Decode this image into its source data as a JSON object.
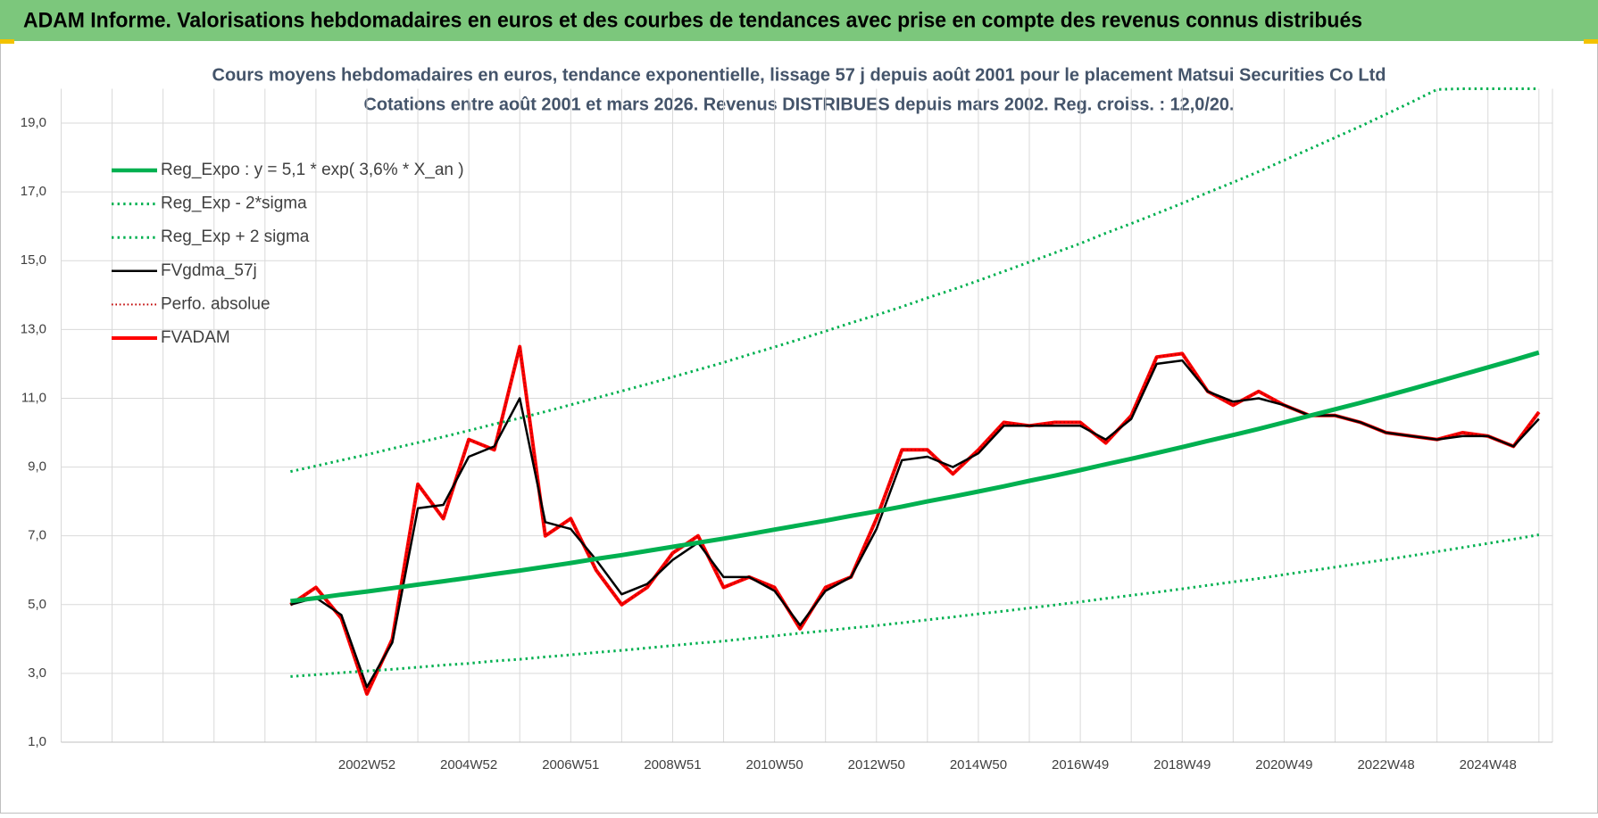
{
  "header": {
    "title": "ADAM Informe. Valorisations hebdomadaires en euros et des courbes de tendances avec prise en compte des revenus connus distribués"
  },
  "chart_data": {
    "type": "line",
    "title": "Cours moyens hebdomadaires en euros, tendance exponentielle, lissage 57 j depuis août 2001 pour le placement Matsui Securities Co Ltd",
    "subtitle": "Cotations entre août 2001 et mars 2026.  Revenus DISTRIBUES depuis mars 2002. Reg. croiss. : 12,0/20.",
    "categories": [
      null,
      null,
      null,
      null,
      null,
      null,
      null,
      null,
      null,
      null,
      null,
      null,
      "2002W52",
      null,
      null,
      null,
      "2004W52",
      null,
      null,
      null,
      "2006W51",
      null,
      null,
      null,
      "2008W51",
      null,
      null,
      null,
      "2010W50",
      null,
      null,
      null,
      "2012W50",
      null,
      null,
      null,
      "2014W50",
      null,
      null,
      null,
      "2016W49",
      null,
      null,
      null,
      "2018W49",
      null,
      null,
      null,
      "2020W49",
      null,
      null,
      null,
      "2022W48",
      null,
      null,
      null,
      "2024W48",
      null,
      null
    ],
    "ylim": [
      1,
      20
    ],
    "yticks": [
      {
        "value": 1,
        "label": "1,0"
      },
      {
        "value": 3,
        "label": "3,0"
      },
      {
        "value": 5,
        "label": "5,0"
      },
      {
        "value": 7,
        "label": "7,0"
      },
      {
        "value": 9,
        "label": "9,0"
      },
      {
        "value": 11,
        "label": "11,0"
      },
      {
        "value": 13,
        "label": "13,0"
      },
      {
        "value": 15,
        "label": "15,0"
      },
      {
        "value": 17,
        "label": "17,0"
      },
      {
        "value": 19,
        "label": "19,0"
      }
    ],
    "grid": true,
    "legend": "top-left",
    "series": [
      {
        "name": "Reg_Expo : y = 5,1 * exp( 3,6% *  X_an )",
        "color": "#00b050",
        "style": "solid",
        "width": 5,
        "values": [
          null,
          null,
          null,
          null,
          null,
          null,
          null,
          null,
          null,
          5.1,
          5.19,
          5.29,
          5.38,
          5.48,
          5.58,
          5.68,
          5.78,
          5.89,
          5.99,
          6.1,
          6.21,
          6.33,
          6.44,
          6.56,
          6.68,
          6.8,
          6.92,
          7.05,
          7.18,
          7.31,
          7.44,
          7.58,
          7.71,
          7.85,
          8.0,
          8.14,
          8.29,
          8.44,
          8.6,
          8.75,
          8.91,
          9.08,
          9.24,
          9.41,
          9.58,
          9.76,
          9.93,
          10.11,
          10.3,
          10.49,
          10.68,
          10.87,
          11.07,
          11.27,
          11.48,
          11.69,
          11.9,
          12.11,
          12.33
        ]
      },
      {
        "name": "Reg_Exp - 2*sigma",
        "color": "#00b050",
        "style": "dotted",
        "width": 3,
        "values": [
          null,
          null,
          null,
          null,
          null,
          null,
          null,
          null,
          null,
          2.91,
          2.96,
          3.02,
          3.07,
          3.12,
          3.18,
          3.24,
          3.29,
          3.36,
          3.41,
          3.48,
          3.54,
          3.61,
          3.67,
          3.74,
          3.81,
          3.88,
          3.94,
          4.02,
          4.09,
          4.17,
          4.24,
          4.32,
          4.39,
          4.47,
          4.56,
          4.64,
          4.73,
          4.81,
          4.9,
          4.99,
          5.08,
          5.18,
          5.27,
          5.36,
          5.46,
          5.56,
          5.66,
          5.76,
          5.87,
          5.98,
          6.09,
          6.2,
          6.31,
          6.42,
          6.54,
          6.66,
          6.78,
          6.9,
          7.03
        ]
      },
      {
        "name": "Reg_Exp + 2 sigma",
        "color": "#00b050",
        "style": "dotted",
        "width": 3,
        "values": [
          null,
          null,
          null,
          null,
          null,
          null,
          null,
          null,
          null,
          8.87,
          9.03,
          9.2,
          9.36,
          9.54,
          9.71,
          9.88,
          10.06,
          10.25,
          10.42,
          10.61,
          10.81,
          11.01,
          11.21,
          11.41,
          11.62,
          11.83,
          12.04,
          12.27,
          12.49,
          12.72,
          12.95,
          13.19,
          13.42,
          13.66,
          13.92,
          14.16,
          14.42,
          14.69,
          14.96,
          15.23,
          15.5,
          15.8,
          16.08,
          16.37,
          16.67,
          16.98,
          17.28,
          17.59,
          17.92,
          18.25,
          18.58,
          18.91,
          19.26,
          19.61,
          19.98,
          20,
          20,
          20,
          20
        ]
      },
      {
        "name": "FVgdma_57j",
        "color": "#000000",
        "style": "solid",
        "width": 2.5,
        "values": [
          null,
          null,
          null,
          null,
          null,
          null,
          null,
          null,
          null,
          5.0,
          5.2,
          4.7,
          2.6,
          3.9,
          7.8,
          7.9,
          9.3,
          9.6,
          11.0,
          7.4,
          7.2,
          6.3,
          5.3,
          5.6,
          6.3,
          6.8,
          5.8,
          5.8,
          5.4,
          4.4,
          5.4,
          5.8,
          7.2,
          9.2,
          9.3,
          9.0,
          9.4,
          10.2,
          10.2,
          10.2,
          10.2,
          9.8,
          10.4,
          12.0,
          12.1,
          11.2,
          10.9,
          11.0,
          10.8,
          10.5,
          10.5,
          10.3,
          10.0,
          9.9,
          9.8,
          9.9,
          9.9,
          9.6,
          10.4
        ]
      },
      {
        "name": "Perfo. absolue",
        "color": "#c00000",
        "style": "dotted",
        "width": 2,
        "values": [
          null,
          null,
          null,
          null,
          null,
          null,
          null,
          null,
          null,
          5.0,
          5.5,
          4.6,
          2.4,
          4.0,
          8.5,
          7.5,
          9.8,
          9.5,
          12.5,
          7.0,
          7.5,
          6.0,
          5.0,
          5.5,
          6.5,
          7.0,
          5.5,
          5.8,
          5.5,
          4.3,
          5.5,
          5.8,
          7.5,
          9.5,
          9.5,
          8.8,
          9.5,
          10.3,
          10.2,
          10.3,
          10.3,
          9.7,
          10.5,
          12.2,
          12.3,
          11.2,
          10.8,
          11.2,
          10.8,
          10.5,
          10.5,
          10.3,
          10.0,
          9.9,
          9.8,
          10.0,
          9.9,
          9.6,
          10.6
        ]
      },
      {
        "name": "FVADAM",
        "color": "#ff0000",
        "style": "solid",
        "width": 4,
        "values": [
          null,
          null,
          null,
          null,
          null,
          null,
          null,
          null,
          null,
          5.0,
          5.5,
          4.6,
          2.4,
          4.0,
          8.5,
          7.5,
          9.8,
          9.5,
          12.5,
          7.0,
          7.5,
          6.0,
          5.0,
          5.5,
          6.5,
          7.0,
          5.5,
          5.8,
          5.5,
          4.3,
          5.5,
          5.8,
          7.5,
          9.5,
          9.5,
          8.8,
          9.5,
          10.3,
          10.2,
          10.3,
          10.3,
          9.7,
          10.5,
          12.2,
          12.3,
          11.2,
          10.8,
          11.2,
          10.8,
          10.5,
          10.5,
          10.3,
          10.0,
          9.9,
          9.8,
          10.0,
          9.9,
          9.6,
          10.6
        ]
      }
    ]
  }
}
